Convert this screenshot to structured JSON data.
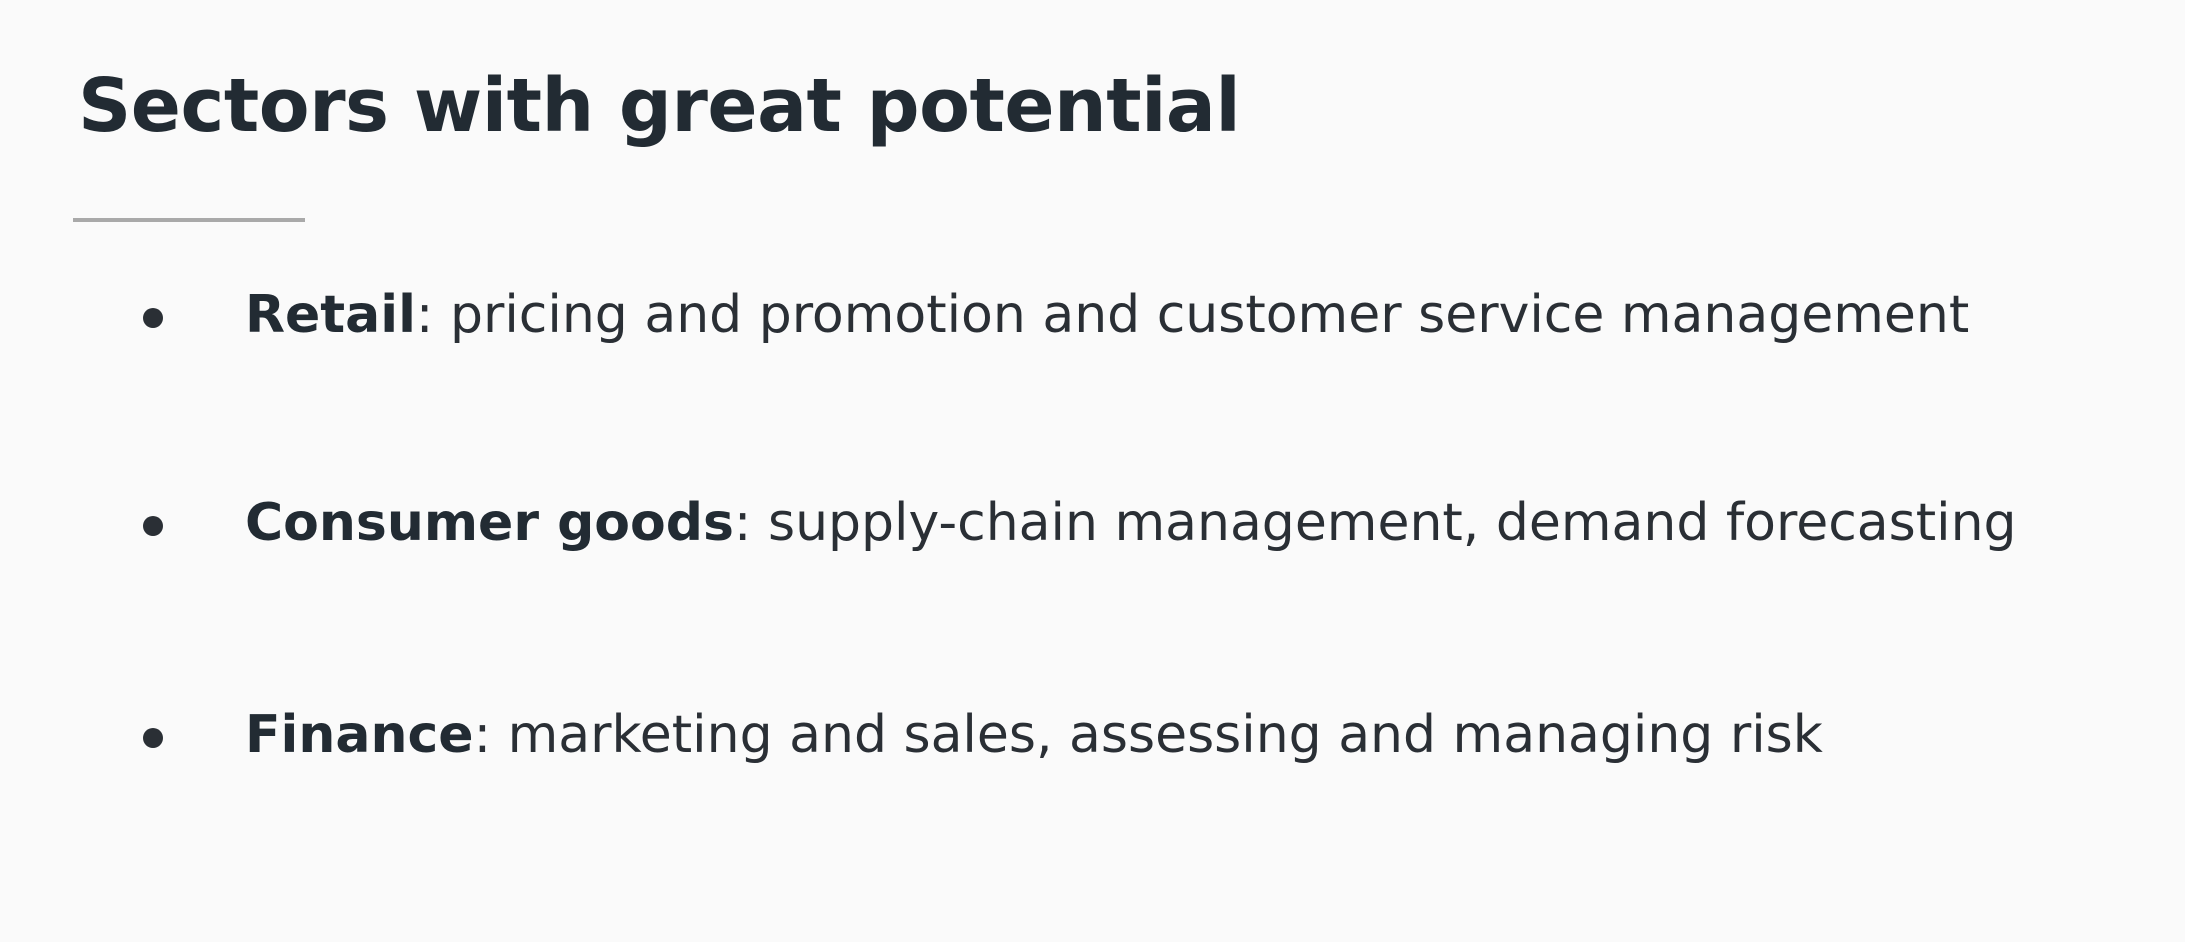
{
  "slide": {
    "title": "Sectors with great potential",
    "bullets": [
      {
        "term": "Retail",
        "separator": ":",
        "description": " pricing and promotion and customer service management"
      },
      {
        "term": "Consumer goods",
        "separator": ":",
        "description": " supply-chain management, demand forecasting"
      },
      {
        "term": "Finance",
        "separator": ":",
        "description": " marketing and sales, assessing and managing risk"
      }
    ]
  },
  "colors": {
    "background": "#fafafa",
    "title": "#222b33",
    "body_text": "#2a2f35",
    "rule": "#a9a9a9"
  }
}
